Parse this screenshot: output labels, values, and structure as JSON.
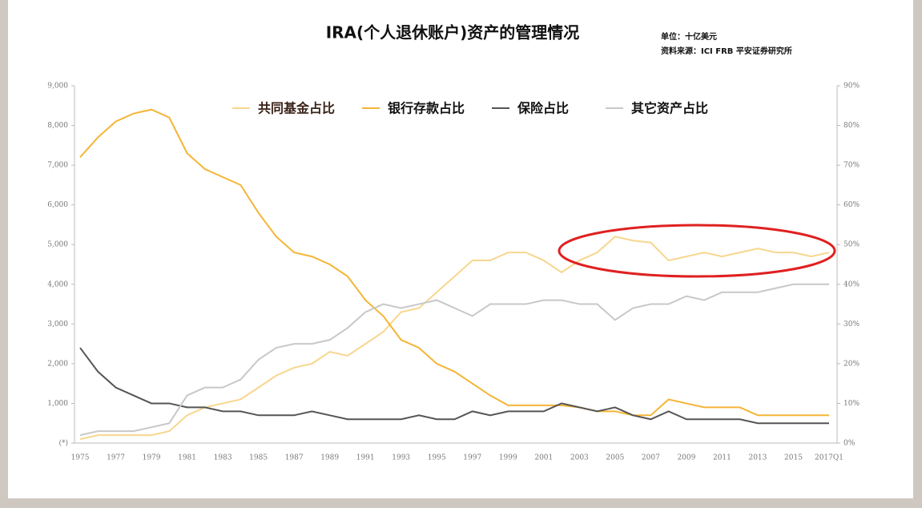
{
  "chart_data": {
    "type": "line",
    "title": "IRA(个人退休账户)资产的管理情况",
    "unit": "单位：十亿美元",
    "source": "资料来源：ICI FRB 平安证券研究所",
    "categories": [
      "1975",
      null,
      "1977",
      null,
      "1979",
      null,
      "1981",
      null,
      "1983",
      null,
      "1985",
      null,
      "1987",
      null,
      "1989",
      null,
      "1991",
      null,
      "1993",
      null,
      "1995",
      null,
      "1997",
      null,
      "1999",
      null,
      "2001",
      null,
      "2003",
      null,
      "2005",
      null,
      "2007",
      null,
      "2009",
      null,
      "2011",
      null,
      "2013",
      null,
      "2015",
      null,
      "2017Q1"
    ],
    "ylim": [
      0,
      9000
    ],
    "yticks": [
      {
        "value": 0,
        "label": "(*)"
      },
      {
        "value": 1000,
        "label": "1,000"
      },
      {
        "value": 2000,
        "label": "2,000"
      },
      {
        "value": 3000,
        "label": "3,000"
      },
      {
        "value": 4000,
        "label": "4,000"
      },
      {
        "value": 5000,
        "label": "5,000"
      },
      {
        "value": 6000,
        "label": "6,000"
      },
      {
        "value": 7000,
        "label": "7,000"
      },
      {
        "value": 8000,
        "label": "8,000"
      },
      {
        "value": 9000,
        "label": "9,000"
      }
    ],
    "y2lim": [
      0,
      90
    ],
    "y2ticks": [
      {
        "value": 0,
        "label": "0%"
      },
      {
        "value": 10,
        "label": "10%"
      },
      {
        "value": 20,
        "label": "20%"
      },
      {
        "value": 30,
        "label": "30%"
      },
      {
        "value": 40,
        "label": "40%"
      },
      {
        "value": 50,
        "label": "50%"
      },
      {
        "value": 60,
        "label": "60%"
      },
      {
        "value": 70,
        "label": "70%"
      },
      {
        "value": 80,
        "label": "80%"
      },
      {
        "value": 90,
        "label": "90%"
      }
    ],
    "series": [
      {
        "name": "共同基金占比",
        "color": "#f7d68e",
        "axis": "y2",
        "values": [
          1,
          2,
          2,
          2,
          2,
          3,
          7,
          9,
          10,
          11,
          14,
          17,
          19,
          20,
          23,
          22,
          25,
          28,
          33,
          34,
          38,
          42,
          46,
          46,
          48,
          48,
          46,
          43,
          46,
          48,
          52,
          51,
          50.5,
          46,
          47,
          48,
          47,
          48,
          49,
          48,
          48,
          47,
          48
        ]
      },
      {
        "name": "银行存款占比",
        "color": "#f4b536",
        "axis": "y2",
        "values": [
          72,
          77,
          81,
          83,
          84,
          82,
          73,
          69,
          67,
          65,
          58,
          52,
          48,
          47,
          45,
          42,
          36,
          32,
          26,
          24,
          20,
          18,
          15,
          12,
          9.5,
          9.5,
          9.5,
          9.5,
          9,
          8,
          8,
          7,
          7,
          11,
          10,
          9,
          9,
          9,
          7,
          7,
          7,
          7,
          7
        ]
      },
      {
        "name": "保险占比",
        "color": "#555555",
        "axis": "y2",
        "values": [
          24,
          18,
          14,
          12,
          10,
          10,
          9,
          9,
          8,
          8,
          7,
          7,
          7,
          8,
          7,
          6,
          6,
          6,
          6,
          7,
          6,
          6,
          8,
          7,
          8,
          8,
          8,
          10,
          9,
          8,
          9,
          7,
          6,
          8,
          6,
          6,
          6,
          6,
          5,
          5,
          5,
          5,
          5
        ]
      },
      {
        "name": "其它资产占比",
        "color": "#c8c8c8",
        "axis": "y2",
        "values": [
          2,
          3,
          3,
          3,
          4,
          5,
          12,
          14,
          14,
          16,
          21,
          24,
          25,
          25,
          26,
          29,
          33,
          35,
          34,
          35,
          36,
          34,
          32,
          35,
          35,
          35,
          36,
          36,
          35,
          35,
          31,
          34,
          35,
          35,
          37,
          36,
          38,
          38,
          38,
          39,
          40,
          40,
          40
        ]
      }
    ]
  }
}
